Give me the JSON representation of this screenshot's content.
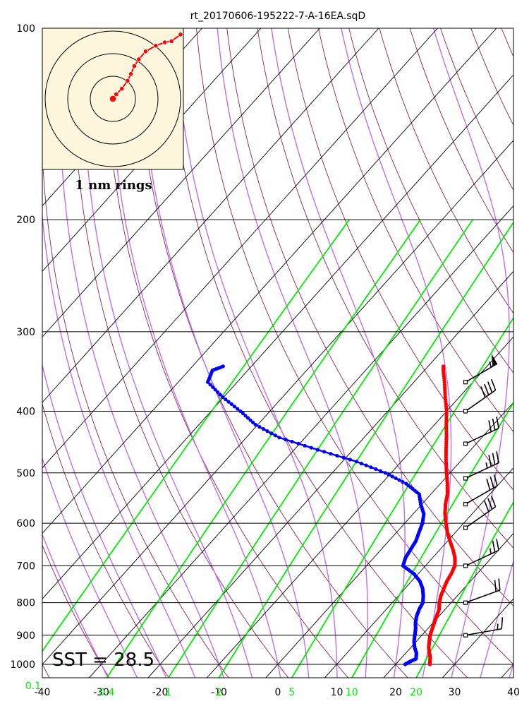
{
  "title": "rt_20170606-195222-7-A-16EA.sqD",
  "sst_label": "SST = 28.5",
  "hodo_label": "1 nm rings",
  "colors": {
    "temperature": "#ff0000",
    "dewpoint": "#0000ff",
    "isotherm": "#000000",
    "dry_adiabat": "#8b2252",
    "moist_adiabat": "#bf6fe6",
    "mixing_ratio": "#00ee00",
    "hodo_background": "#fdf6dc"
  },
  "chart_data": {
    "type": "skew-t log-p",
    "xlim": [
      -40,
      40
    ],
    "ylim": [
      1050,
      100
    ],
    "x_ticks": [
      "-40",
      "-30",
      "-20",
      "-10",
      "0",
      "10",
      "20",
      "30",
      "40"
    ],
    "p_ticks": [
      "100",
      "200",
      "300",
      "400",
      "500",
      "600",
      "700",
      "800",
      "900",
      "1000"
    ],
    "mixing_ratio_labels": [
      "0.1",
      "0.4",
      "1",
      "2",
      "5",
      "10",
      "20"
    ],
    "temperature_profile": [
      [
        1000,
        25.8
      ],
      [
        990,
        25.4
      ],
      [
        975,
        24.8
      ],
      [
        960,
        24.0
      ],
      [
        940,
        23.0
      ],
      [
        920,
        22.2
      ],
      [
        900,
        21.4
      ],
      [
        880,
        20.8
      ],
      [
        860,
        20.2
      ],
      [
        840,
        19.6
      ],
      [
        820,
        19.0
      ],
      [
        800,
        18.0
      ],
      [
        780,
        17.2
      ],
      [
        760,
        16.6
      ],
      [
        740,
        16.0
      ],
      [
        720,
        15.6
      ],
      [
        700,
        15.0
      ],
      [
        680,
        13.8
      ],
      [
        660,
        12.2
      ],
      [
        640,
        10.4
      ],
      [
        620,
        8.6
      ],
      [
        600,
        7.0
      ],
      [
        580,
        5.4
      ],
      [
        560,
        4.0
      ],
      [
        540,
        2.8
      ],
      [
        520,
        1.2
      ],
      [
        500,
        -0.6
      ],
      [
        480,
        -2.4
      ],
      [
        460,
        -4.2
      ],
      [
        440,
        -6.0
      ],
      [
        420,
        -8.0
      ],
      [
        400,
        -10.0
      ],
      [
        380,
        -12.4
      ],
      [
        360,
        -14.8
      ],
      [
        345,
        -16.8
      ],
      [
        340,
        -17.4
      ]
    ],
    "dewpoint_profile": [
      [
        1000,
        21.6
      ],
      [
        990,
        22.0
      ],
      [
        980,
        22.6
      ],
      [
        960,
        21.8
      ],
      [
        940,
        20.6
      ],
      [
        920,
        19.6
      ],
      [
        900,
        18.8
      ],
      [
        880,
        18.0
      ],
      [
        860,
        17.0
      ],
      [
        840,
        16.2
      ],
      [
        820,
        15.6
      ],
      [
        800,
        15.2
      ],
      [
        780,
        14.2
      ],
      [
        760,
        13.0
      ],
      [
        740,
        11.4
      ],
      [
        720,
        9.2
      ],
      [
        700,
        6.2
      ],
      [
        680,
        5.4
      ],
      [
        660,
        5.0
      ],
      [
        640,
        4.6
      ],
      [
        620,
        3.8
      ],
      [
        600,
        3.0
      ],
      [
        580,
        1.8
      ],
      [
        560,
        -0.2
      ],
      [
        540,
        -2.0
      ],
      [
        520,
        -5.8
      ],
      [
        500,
        -11.0
      ],
      [
        480,
        -17.6
      ],
      [
        460,
        -26.0
      ],
      [
        440,
        -34.4
      ],
      [
        420,
        -40.4
      ],
      [
        400,
        -45.0
      ],
      [
        380,
        -50.2
      ],
      [
        360,
        -55.0
      ],
      [
        345,
        -56.0
      ],
      [
        340,
        -54.8
      ]
    ],
    "wind_barbs": [
      {
        "p": 360,
        "dir": 240,
        "kt": 55
      },
      {
        "p": 400,
        "dir": 235,
        "kt": 40
      },
      {
        "p": 450,
        "dir": 245,
        "kt": 30
      },
      {
        "p": 510,
        "dir": 245,
        "kt": 35
      },
      {
        "p": 560,
        "dir": 240,
        "kt": 30
      },
      {
        "p": 610,
        "dir": 235,
        "kt": 30
      },
      {
        "p": 700,
        "dir": 245,
        "kt": 25
      },
      {
        "p": 800,
        "dir": 250,
        "kt": 20
      },
      {
        "p": 900,
        "dir": 260,
        "kt": 15
      }
    ],
    "hodograph": {
      "rings": [
        1,
        2,
        3
      ],
      "points": [
        [
          0,
          0
        ],
        [
          0.15,
          0.2
        ],
        [
          0.4,
          0.45
        ],
        [
          0.65,
          0.8
        ],
        [
          0.8,
          1.1
        ],
        [
          0.95,
          1.45
        ],
        [
          1.15,
          1.75
        ],
        [
          1.45,
          2.1
        ],
        [
          1.9,
          2.35
        ],
        [
          2.3,
          2.5
        ],
        [
          2.6,
          2.55
        ],
        [
          3.0,
          2.85
        ]
      ]
    }
  }
}
